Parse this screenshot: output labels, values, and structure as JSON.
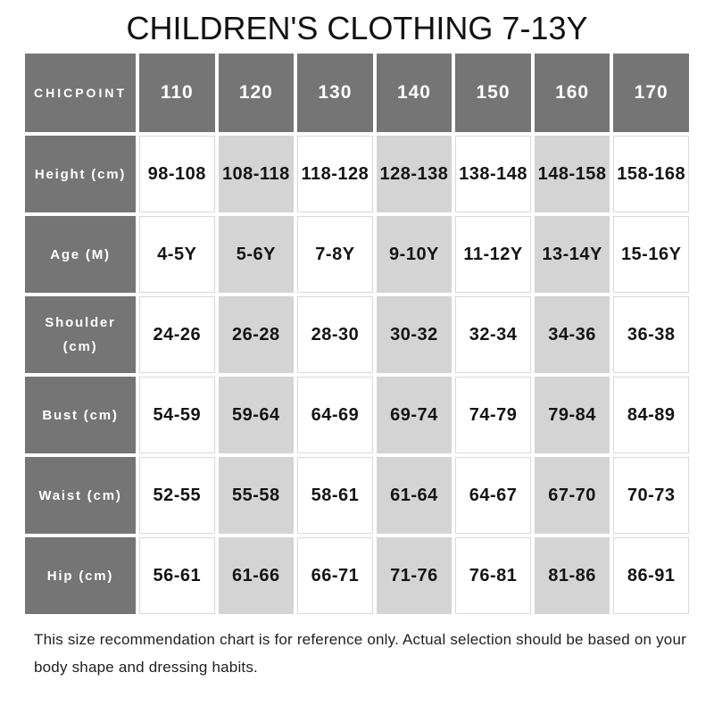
{
  "chart_data": {
    "type": "table",
    "title": "CHILDREN'S CLOTHING 7-13Y",
    "corner_label": "CHICPOINT",
    "columns": [
      "110",
      "120",
      "130",
      "140",
      "150",
      "160",
      "170"
    ],
    "highlighted_columns": [
      "120",
      "140",
      "160"
    ],
    "rows": [
      {
        "label": "Height (cm)",
        "values": [
          "98-108",
          "108-118",
          "118-128",
          "128-138",
          "138-148",
          "148-158",
          "158-168"
        ]
      },
      {
        "label": "Age (M)",
        "values": [
          "4-5Y",
          "5-6Y",
          "7-8Y",
          "9-10Y",
          "11-12Y",
          "13-14Y",
          "15-16Y"
        ]
      },
      {
        "label": "Shoulder (cm)",
        "values": [
          "24-26",
          "26-28",
          "28-30",
          "30-32",
          "32-34",
          "34-36",
          "36-38"
        ]
      },
      {
        "label": "Bust (cm)",
        "values": [
          "54-59",
          "59-64",
          "64-69",
          "69-74",
          "74-79",
          "79-84",
          "84-89"
        ]
      },
      {
        "label": "Waist (cm)",
        "values": [
          "52-55",
          "55-58",
          "58-61",
          "61-64",
          "64-67",
          "67-70",
          "70-73"
        ]
      },
      {
        "label": "Hip (cm)",
        "values": [
          "56-61",
          "61-66",
          "66-71",
          "71-76",
          "76-81",
          "81-86",
          "86-91"
        ]
      }
    ],
    "layout_hints": {
      "header_row_color": "#757575",
      "label_column_color": "#757575",
      "highlight_cell_color": "#d4d4d4",
      "plain_cell_color": "#ffffff",
      "cell_border_color": "#d9d9d9",
      "header_text_color": "#ffffff",
      "value_text_color": "#141414"
    }
  },
  "footer_note": "This size recommendation chart is for reference only. Actual selection should be based on your body shape and dressing habits."
}
